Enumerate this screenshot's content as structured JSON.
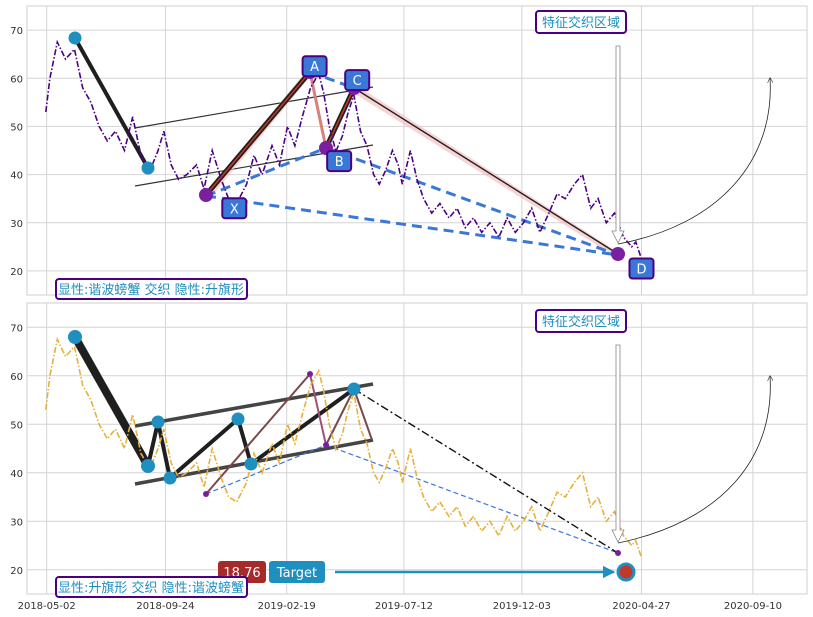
{
  "chart_data": [
    {
      "type": "line",
      "panel": "top",
      "ylim": [
        15,
        75
      ],
      "yticks": [
        20,
        30,
        40,
        50,
        60,
        70
      ],
      "xlim": [
        "2018-04-08",
        "2020-11-15"
      ],
      "xticks": [
        "2018-05-02",
        "2018-09-24",
        "2019-02-19",
        "2019-07-12",
        "2019-12-03",
        "2020-04-27",
        "2020-09-10"
      ],
      "show_x_tick_labels": false,
      "grid": true,
      "price_color": "#4b0082",
      "price_style": "dash-dot",
      "price": [
        [
          "2018-05-01",
          53
        ],
        [
          "2018-05-06",
          60
        ],
        [
          "2018-05-15",
          67.5
        ],
        [
          "2018-05-25",
          64
        ],
        [
          "2018-06-05",
          66
        ],
        [
          "2018-06-15",
          58
        ],
        [
          "2018-06-25",
          55
        ],
        [
          "2018-07-05",
          50
        ],
        [
          "2018-07-15",
          47
        ],
        [
          "2018-07-25",
          49
        ],
        [
          "2018-08-05",
          45
        ],
        [
          "2018-08-15",
          52
        ],
        [
          "2018-08-25",
          44
        ],
        [
          "2018-09-05",
          40.8
        ],
        [
          "2018-09-15",
          45
        ],
        [
          "2018-09-22",
          49
        ],
        [
          "2018-10-01",
          42
        ],
        [
          "2018-10-10",
          39
        ],
        [
          "2018-10-20",
          40
        ],
        [
          "2018-11-01",
          42
        ],
        [
          "2018-11-10",
          37
        ],
        [
          "2018-11-20",
          45
        ],
        [
          "2018-12-01",
          39
        ],
        [
          "2018-12-10",
          35
        ],
        [
          "2018-12-20",
          34
        ],
        [
          "2019-01-01",
          38
        ],
        [
          "2019-01-10",
          44
        ],
        [
          "2019-01-20",
          40
        ],
        [
          "2019-02-01",
          46
        ],
        [
          "2019-02-10",
          42
        ],
        [
          "2019-02-20",
          50
        ],
        [
          "2019-03-01",
          46
        ],
        [
          "2019-03-10",
          52
        ],
        [
          "2019-03-20",
          58
        ],
        [
          "2019-03-30",
          61
        ],
        [
          "2019-04-05",
          57
        ],
        [
          "2019-04-12",
          50
        ],
        [
          "2019-04-20",
          44.8
        ],
        [
          "2019-04-28",
          48
        ],
        [
          "2019-05-05",
          53
        ],
        [
          "2019-05-12",
          56.5
        ],
        [
          "2019-05-20",
          49
        ],
        [
          "2019-05-28",
          46
        ],
        [
          "2019-06-05",
          40
        ],
        [
          "2019-06-12",
          38
        ],
        [
          "2019-06-20",
          41
        ],
        [
          "2019-06-28",
          45
        ],
        [
          "2019-07-05",
          42
        ],
        [
          "2019-07-10",
          38
        ],
        [
          "2019-07-20",
          45
        ],
        [
          "2019-07-28",
          39
        ],
        [
          "2019-08-05",
          35
        ],
        [
          "2019-08-15",
          32
        ],
        [
          "2019-08-25",
          34
        ],
        [
          "2019-09-05",
          31
        ],
        [
          "2019-09-15",
          33
        ],
        [
          "2019-09-25",
          29
        ],
        [
          "2019-10-05",
          31
        ],
        [
          "2019-10-15",
          28
        ],
        [
          "2019-10-25",
          30
        ],
        [
          "2019-11-05",
          27
        ],
        [
          "2019-11-15",
          31
        ],
        [
          "2019-11-25",
          28
        ],
        [
          "2019-12-05",
          30
        ],
        [
          "2019-12-15",
          33
        ],
        [
          "2019-12-25",
          28
        ],
        [
          "2020-01-05",
          32
        ],
        [
          "2020-01-15",
          36
        ],
        [
          "2020-01-25",
          35
        ],
        [
          "2020-02-05",
          38
        ],
        [
          "2020-02-15",
          40
        ],
        [
          "2020-02-25",
          33
        ],
        [
          "2020-03-05",
          35
        ],
        [
          "2020-03-15",
          30
        ],
        [
          "2020-03-25",
          32
        ],
        [
          "2020-04-05",
          27
        ],
        [
          "2020-04-15",
          25
        ],
        [
          "2020-04-20",
          26
        ],
        [
          "2020-04-27",
          22.5
        ]
      ],
      "labels": [
        {
          "text": "X",
          "date": "2018-12-17",
          "value": 33
        },
        {
          "text": "A",
          "date": "2019-03-25",
          "value": 62.5
        },
        {
          "text": "B",
          "date": "2019-04-24",
          "value": 42.8
        },
        {
          "text": "C",
          "date": "2019-05-16",
          "value": 59.6
        },
        {
          "text": "D",
          "date": "2020-04-27",
          "value": 20.5
        }
      ],
      "zone_label": "特征交织区域",
      "caption": "显性:谐波螃蟹 交织 隐性:升旗形"
    },
    {
      "type": "line",
      "panel": "bottom",
      "ylim": [
        15,
        75
      ],
      "yticks": [
        20,
        30,
        40,
        50,
        60,
        70
      ],
      "xlim": [
        "2018-04-08",
        "2020-11-15"
      ],
      "xticks": [
        "2018-05-02",
        "2018-09-24",
        "2019-02-19",
        "2019-07-12",
        "2019-12-03",
        "2020-04-27",
        "2020-09-10"
      ],
      "show_x_tick_labels": true,
      "grid": true,
      "price_color": "#e6b03a",
      "price_style": "dash-dot",
      "price": [
        [
          "2018-05-01",
          53
        ],
        [
          "2018-05-06",
          60
        ],
        [
          "2018-05-15",
          67.5
        ],
        [
          "2018-05-25",
          64
        ],
        [
          "2018-06-05",
          66
        ],
        [
          "2018-06-15",
          58
        ],
        [
          "2018-06-25",
          55
        ],
        [
          "2018-07-05",
          50
        ],
        [
          "2018-07-15",
          47
        ],
        [
          "2018-07-25",
          49
        ],
        [
          "2018-08-05",
          45
        ],
        [
          "2018-08-15",
          52
        ],
        [
          "2018-08-25",
          44
        ],
        [
          "2018-09-05",
          40.8
        ],
        [
          "2018-09-15",
          45
        ],
        [
          "2018-09-22",
          49
        ],
        [
          "2018-10-01",
          42
        ],
        [
          "2018-10-10",
          39
        ],
        [
          "2018-10-20",
          40
        ],
        [
          "2018-11-01",
          42
        ],
        [
          "2018-11-10",
          37
        ],
        [
          "2018-11-20",
          45
        ],
        [
          "2018-12-01",
          39
        ],
        [
          "2018-12-10",
          35
        ],
        [
          "2018-12-20",
          34
        ],
        [
          "2019-01-01",
          38
        ],
        [
          "2019-01-10",
          44
        ],
        [
          "2019-01-20",
          40
        ],
        [
          "2019-02-01",
          46
        ],
        [
          "2019-02-10",
          42
        ],
        [
          "2019-02-20",
          50
        ],
        [
          "2019-03-01",
          46
        ],
        [
          "2019-03-10",
          52
        ],
        [
          "2019-03-20",
          58
        ],
        [
          "2019-03-30",
          61
        ],
        [
          "2019-04-05",
          57
        ],
        [
          "2019-04-12",
          50
        ],
        [
          "2019-04-20",
          44.8
        ],
        [
          "2019-04-28",
          48
        ],
        [
          "2019-05-05",
          53
        ],
        [
          "2019-05-12",
          56.5
        ],
        [
          "2019-05-20",
          49
        ],
        [
          "2019-05-28",
          46
        ],
        [
          "2019-06-05",
          40
        ],
        [
          "2019-06-12",
          38
        ],
        [
          "2019-06-20",
          41
        ],
        [
          "2019-06-28",
          45
        ],
        [
          "2019-07-05",
          42
        ],
        [
          "2019-07-10",
          38
        ],
        [
          "2019-07-20",
          45
        ],
        [
          "2019-07-28",
          39
        ],
        [
          "2019-08-05",
          35
        ],
        [
          "2019-08-15",
          32
        ],
        [
          "2019-08-25",
          34
        ],
        [
          "2019-09-05",
          31
        ],
        [
          "2019-09-15",
          33
        ],
        [
          "2019-09-25",
          29
        ],
        [
          "2019-10-05",
          31
        ],
        [
          "2019-10-15",
          28
        ],
        [
          "2019-10-25",
          30
        ],
        [
          "2019-11-05",
          27
        ],
        [
          "2019-11-15",
          31
        ],
        [
          "2019-11-25",
          28
        ],
        [
          "2019-12-05",
          30
        ],
        [
          "2019-12-15",
          33
        ],
        [
          "2019-12-25",
          28
        ],
        [
          "2020-01-05",
          32
        ],
        [
          "2020-01-15",
          36
        ],
        [
          "2020-01-25",
          35
        ],
        [
          "2020-02-05",
          38
        ],
        [
          "2020-02-15",
          40
        ],
        [
          "2020-02-25",
          33
        ],
        [
          "2020-03-05",
          35
        ],
        [
          "2020-03-15",
          30
        ],
        [
          "2020-03-25",
          32
        ],
        [
          "2020-04-05",
          27
        ],
        [
          "2020-04-15",
          25
        ],
        [
          "2020-04-20",
          26
        ],
        [
          "2020-04-27",
          22.5
        ]
      ],
      "zone_label": "特征交织区域",
      "caption": "显性:升旗形 交织 隐性:谐波螃蟹",
      "price_tag": "18.76",
      "target_label": "Target"
    }
  ]
}
